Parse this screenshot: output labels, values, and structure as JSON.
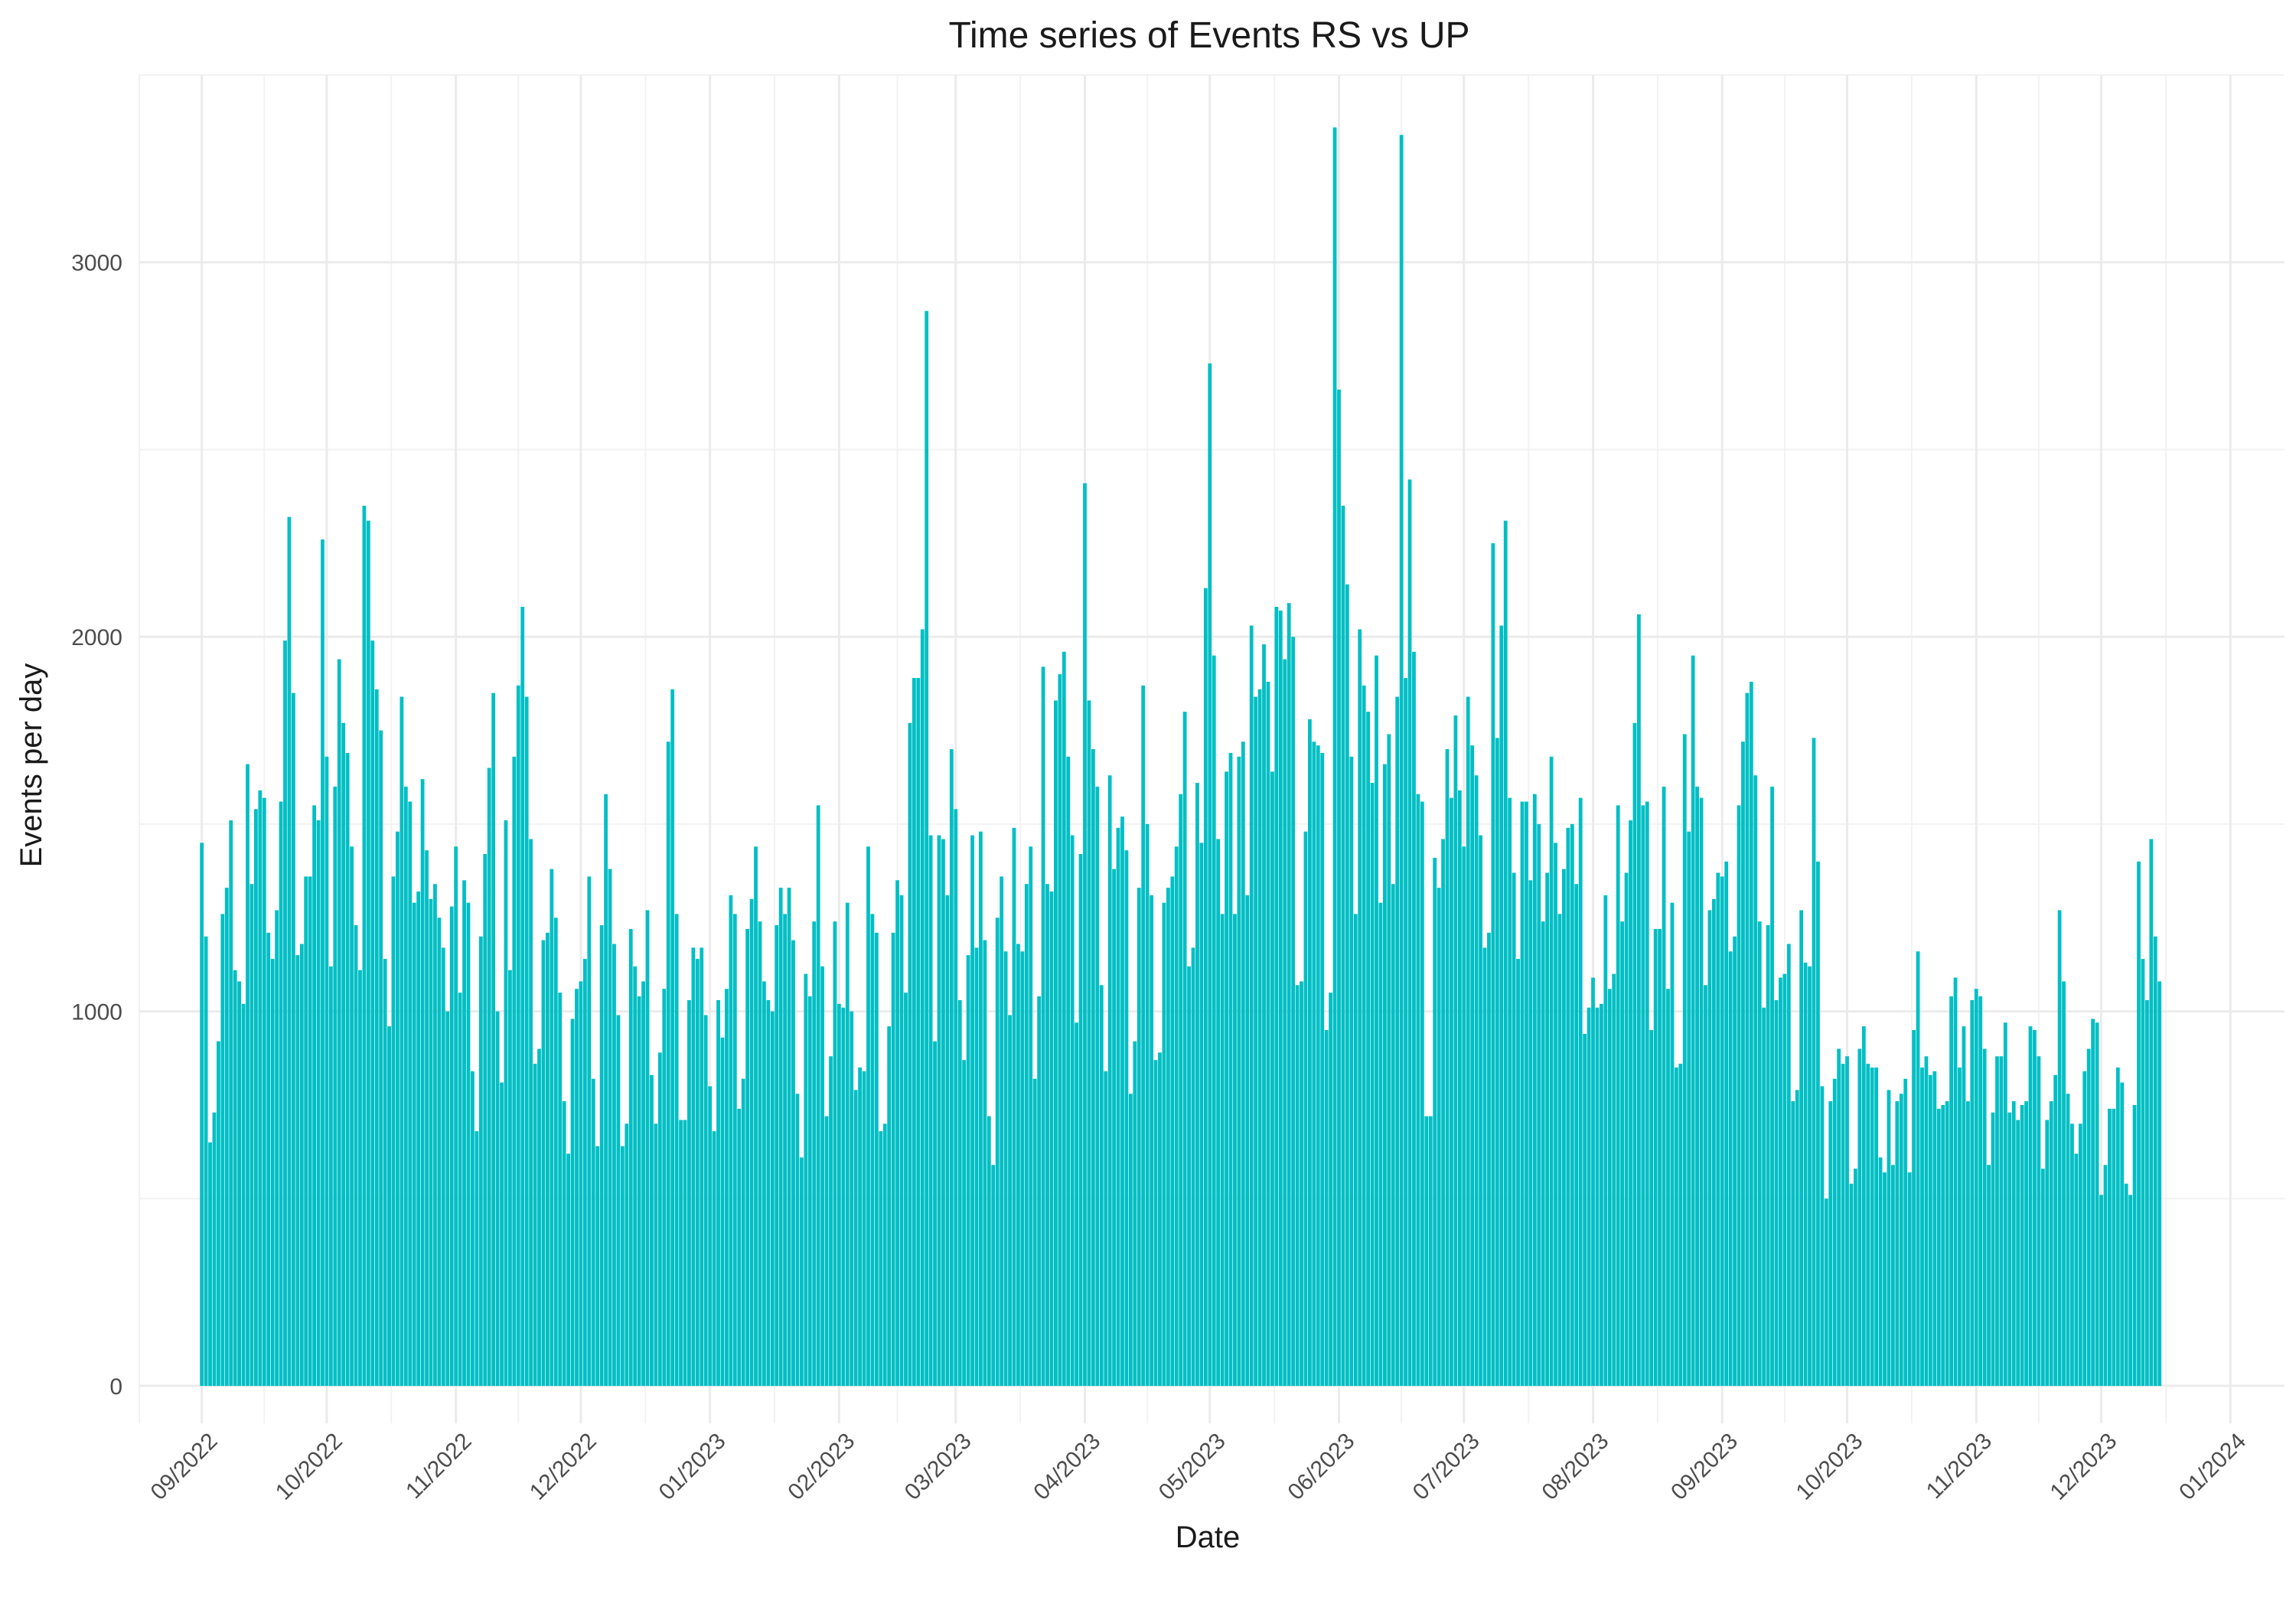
{
  "chart_data": {
    "type": "bar",
    "title": "Time series of Events RS vs UP",
    "xlabel": "Date",
    "ylabel": "Events per day",
    "x_range": [
      "2022-08-17",
      "2024-01-14"
    ],
    "ylim": [
      -100,
      3500
    ],
    "y_ticks": [
      0,
      1000,
      2000,
      3000
    ],
    "x_ticks": [
      {
        "date": "2022-09-01",
        "label": "09/2022"
      },
      {
        "date": "2022-10-01",
        "label": "10/2022"
      },
      {
        "date": "2022-11-01",
        "label": "11/2022"
      },
      {
        "date": "2022-12-01",
        "label": "12/2022"
      },
      {
        "date": "2023-01-01",
        "label": "01/2023"
      },
      {
        "date": "2023-02-01",
        "label": "02/2023"
      },
      {
        "date": "2023-03-01",
        "label": "03/2023"
      },
      {
        "date": "2023-04-01",
        "label": "04/2023"
      },
      {
        "date": "2023-05-01",
        "label": "05/2023"
      },
      {
        "date": "2023-06-01",
        "label": "06/2023"
      },
      {
        "date": "2023-07-01",
        "label": "07/2023"
      },
      {
        "date": "2023-08-01",
        "label": "08/2023"
      },
      {
        "date": "2023-09-01",
        "label": "09/2023"
      },
      {
        "date": "2023-10-01",
        "label": "10/2023"
      },
      {
        "date": "2023-11-01",
        "label": "11/2023"
      },
      {
        "date": "2023-12-01",
        "label": "12/2023"
      },
      {
        "date": "2024-01-01",
        "label": "01/2024"
      }
    ],
    "grid": true,
    "bar_color": "#00bfc4",
    "start_date": "2022-09-01",
    "values": [
      1450,
      1200,
      650,
      730,
      920,
      1260,
      1330,
      1510,
      1110,
      1080,
      1020,
      1660,
      1340,
      1540,
      1590,
      1570,
      1210,
      1140,
      1270,
      1560,
      1990,
      2320,
      1850,
      1150,
      1180,
      1360,
      1360,
      1550,
      1510,
      2260,
      1680,
      1120,
      1600,
      1940,
      1770,
      1690,
      1440,
      1230,
      1110,
      2350,
      2310,
      1990,
      1860,
      1750,
      1140,
      960,
      1360,
      1480,
      1840,
      1600,
      1560,
      1290,
      1320,
      1620,
      1430,
      1300,
      1340,
      1250,
      1170,
      1000,
      1280,
      1440,
      1050,
      1350,
      1290,
      840,
      680,
      1200,
      1420,
      1650,
      1850,
      1000,
      810,
      1510,
      1110,
      1680,
      1870,
      2080,
      1840,
      1460,
      860,
      900,
      1190,
      1210,
      1380,
      1250,
      1050,
      760,
      620,
      980,
      1060,
      1080,
      1140,
      1360,
      820,
      640,
      1230,
      1580,
      1380,
      1180,
      990,
      640,
      700,
      1220,
      1120,
      1040,
      1080,
      1270,
      830,
      700,
      890,
      1060,
      1720,
      1860,
      1260,
      710,
      710,
      1030,
      1170,
      1140,
      1170,
      990,
      800,
      680,
      1030,
      930,
      1060,
      1310,
      1260,
      740,
      820,
      1220,
      1300,
      1440,
      1240,
      1080,
      1030,
      1000,
      1230,
      1330,
      1260,
      1330,
      1190,
      780,
      610,
      1100,
      1040,
      1240,
      1550,
      1120,
      720,
      880,
      1240,
      1020,
      1010,
      1290,
      1000,
      790,
      850,
      840,
      1440,
      1260,
      1210,
      680,
      700,
      960,
      1210,
      1350,
      1310,
      1050,
      1770,
      1890,
      1890,
      2020,
      2870,
      1470,
      920,
      1470,
      1460,
      1310,
      1700,
      1540,
      1030,
      870,
      1150,
      1470,
      1170,
      1480,
      1190,
      720,
      590,
      1250,
      1360,
      1160,
      990,
      1490,
      1180,
      1160,
      1340,
      1440,
      820,
      1040,
      1920,
      1340,
      1320,
      1830,
      1900,
      1960,
      1680,
      1470,
      970,
      1420,
      2410,
      1830,
      1700,
      1600,
      1070,
      840,
      1630,
      1380,
      1490,
      1520,
      1430,
      780,
      920,
      1330,
      1870,
      1500,
      1310,
      870,
      890,
      1290,
      1330,
      1360,
      1440,
      1580,
      1800,
      1120,
      1170,
      1610,
      1450,
      2130,
      2730,
      1950,
      1460,
      1260,
      1640,
      1690,
      1260,
      1680,
      1720,
      1310,
      2030,
      1840,
      1860,
      1980,
      1880,
      1640,
      2080,
      2070,
      1940,
      2090,
      2000,
      1070,
      1080,
      1480,
      1780,
      1720,
      1710,
      1690,
      950,
      1050,
      3360,
      2660,
      2350,
      2140,
      1680,
      1260,
      2020,
      1870,
      1800,
      1610,
      1950,
      1290,
      1660,
      1740,
      1340,
      1840,
      3340,
      1890,
      2420,
      1960,
      1580,
      1560,
      720,
      720,
      1410,
      1330,
      1460,
      1700,
      1570,
      1790,
      1590,
      1440,
      1840,
      1710,
      1630,
      1470,
      1170,
      1210,
      2250,
      1730,
      2030,
      2310,
      1570,
      1370,
      1140,
      1560,
      1560,
      1350,
      1580,
      1500,
      1240,
      1370,
      1680,
      1450,
      1260,
      1380,
      1490,
      1500,
      1340,
      1570,
      940,
      1010,
      1090,
      1010,
      1020,
      1310,
      1060,
      1100,
      1550,
      1240,
      1370,
      1510,
      1770,
      2060,
      1550,
      1560,
      950,
      1220,
      1220,
      1600,
      1060,
      1290,
      850,
      860,
      1740,
      1480,
      1950,
      1600,
      1570,
      1070,
      1270,
      1300,
      1370,
      1360,
      1400,
      1160,
      1200,
      1550,
      1720,
      1850,
      1880,
      1630,
      1240,
      1010,
      1230,
      1600,
      1030,
      1090,
      1100,
      1180,
      760,
      790,
      1270,
      1130,
      1120,
      1730,
      1400,
      800,
      500,
      760,
      820,
      900,
      860,
      880,
      540,
      580,
      900,
      960,
      860,
      850,
      850,
      610,
      570,
      790,
      590,
      760,
      780,
      820,
      570,
      950,
      1160,
      850,
      880,
      830,
      840,
      740,
      750,
      760,
      1040,
      1090,
      850,
      960,
      760,
      1030,
      1060,
      1040,
      900,
      590,
      730,
      880,
      880,
      970,
      730,
      760,
      710,
      750,
      760,
      960,
      950,
      880,
      580,
      710,
      760,
      830,
      1270,
      1080,
      780,
      700,
      620,
      700,
      840,
      900,
      980,
      970,
      510,
      590,
      740,
      740,
      850,
      810,
      540,
      510,
      750,
      1400,
      1140,
      1030,
      1460,
      1200,
      1080
    ]
  }
}
